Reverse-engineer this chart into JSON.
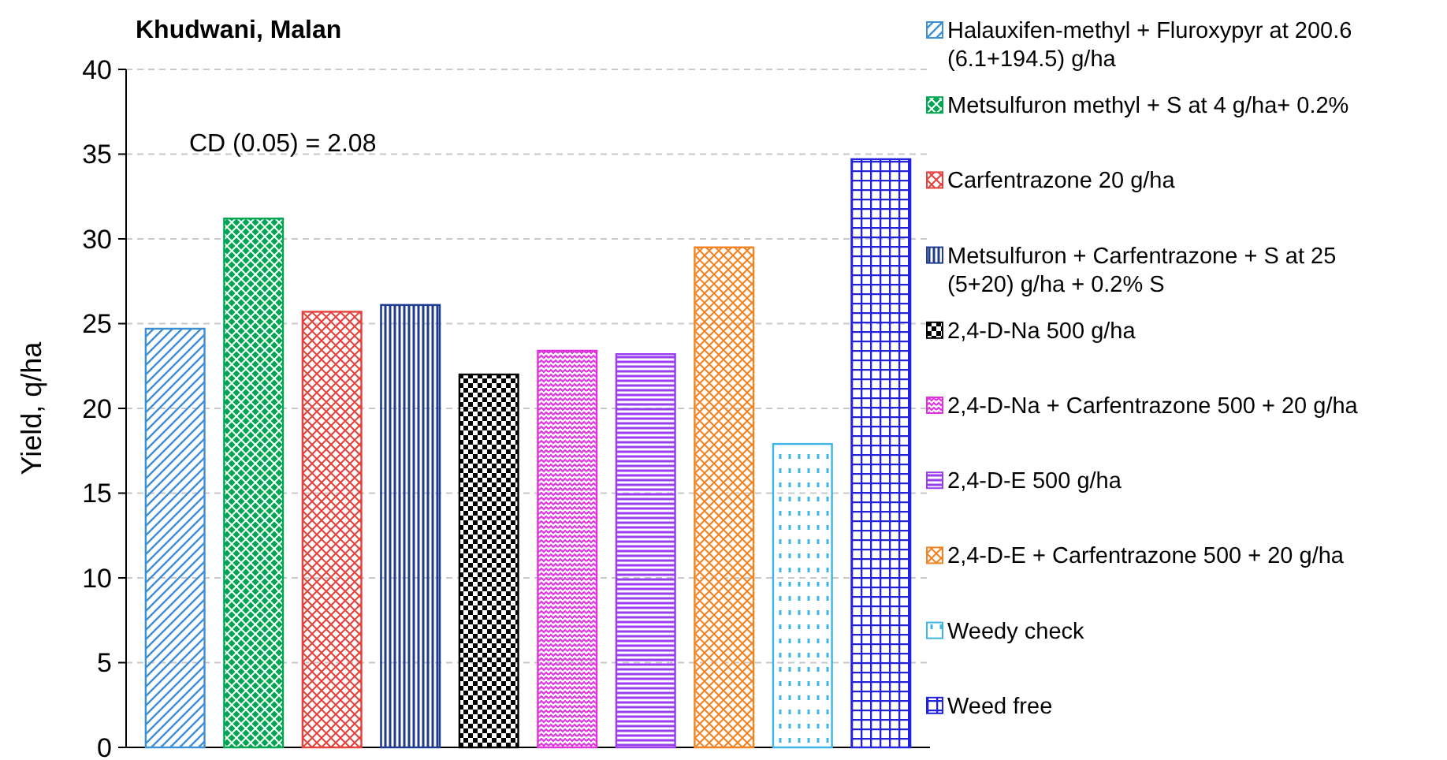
{
  "chart_data": {
    "type": "bar",
    "title": "Khudwani, Malan",
    "ylabel": "Yield, q/ha",
    "categories": [
      null,
      null,
      null,
      null,
      null,
      null,
      null,
      null,
      null,
      null
    ],
    "series": [
      {
        "name": "Halauxifen-methyl + Fluroxypyr at 200.6 (6.1+194.5) g/ha",
        "color": "#3d8fd6",
        "values": [
          24.7,
          null,
          null,
          null,
          null,
          null,
          null,
          null,
          null,
          null
        ]
      },
      {
        "name": "Metsulfuron methyl + S at 4 g/ha+ 0.2%",
        "color": "#00a651",
        "values": [
          null,
          31.2,
          null,
          null,
          null,
          null,
          null,
          null,
          null,
          null
        ]
      },
      {
        "name": "Carfentrazone 20 g/ha",
        "color": "#e8403a",
        "values": [
          null,
          null,
          25.7,
          null,
          null,
          null,
          null,
          null,
          null,
          null
        ]
      },
      {
        "name": "Metsulfuron + Carfentrazone + S at 25 (5+20) g/ha + 0.2% S",
        "color": "#1f3b8f",
        "values": [
          null,
          null,
          null,
          26.1,
          null,
          null,
          null,
          null,
          null,
          null
        ]
      },
      {
        "name": "2,4-D-Na 500 g/ha",
        "color": "#000000",
        "values": [
          null,
          null,
          null,
          null,
          22.0,
          null,
          null,
          null,
          null,
          null
        ]
      },
      {
        "name": "2,4-D-Na + Carfentrazone 500 + 20 g/ha",
        "color": "#e030e0",
        "values": [
          null,
          null,
          null,
          null,
          null,
          23.4,
          null,
          null,
          null,
          null
        ]
      },
      {
        "name": "2,4-D-E 500 g/ha",
        "color": "#9a3cf0",
        "values": [
          null,
          null,
          null,
          null,
          null,
          null,
          23.2,
          null,
          null,
          null
        ]
      },
      {
        "name": "2,4-D-E + Carfentrazone 500 + 20 g/ha",
        "color": "#f58220",
        "values": [
          null,
          null,
          null,
          null,
          null,
          null,
          null,
          29.5,
          null,
          null
        ]
      },
      {
        "name": "Weedy check",
        "color": "#3cb4e6",
        "values": [
          null,
          null,
          null,
          null,
          null,
          null,
          null,
          null,
          17.9,
          null
        ]
      },
      {
        "name": "Weed free",
        "color": "#2222dd",
        "values": [
          null,
          null,
          null,
          null,
          null,
          null,
          null,
          null,
          null,
          34.7
        ]
      }
    ],
    "ylim": [
      0,
      40
    ],
    "yticks": [
      0,
      5,
      10,
      15,
      20,
      25,
      30,
      35,
      40
    ],
    "grid": "y",
    "legend": "right",
    "annotations": [
      "CD (0.05) = 2.08"
    ]
  }
}
